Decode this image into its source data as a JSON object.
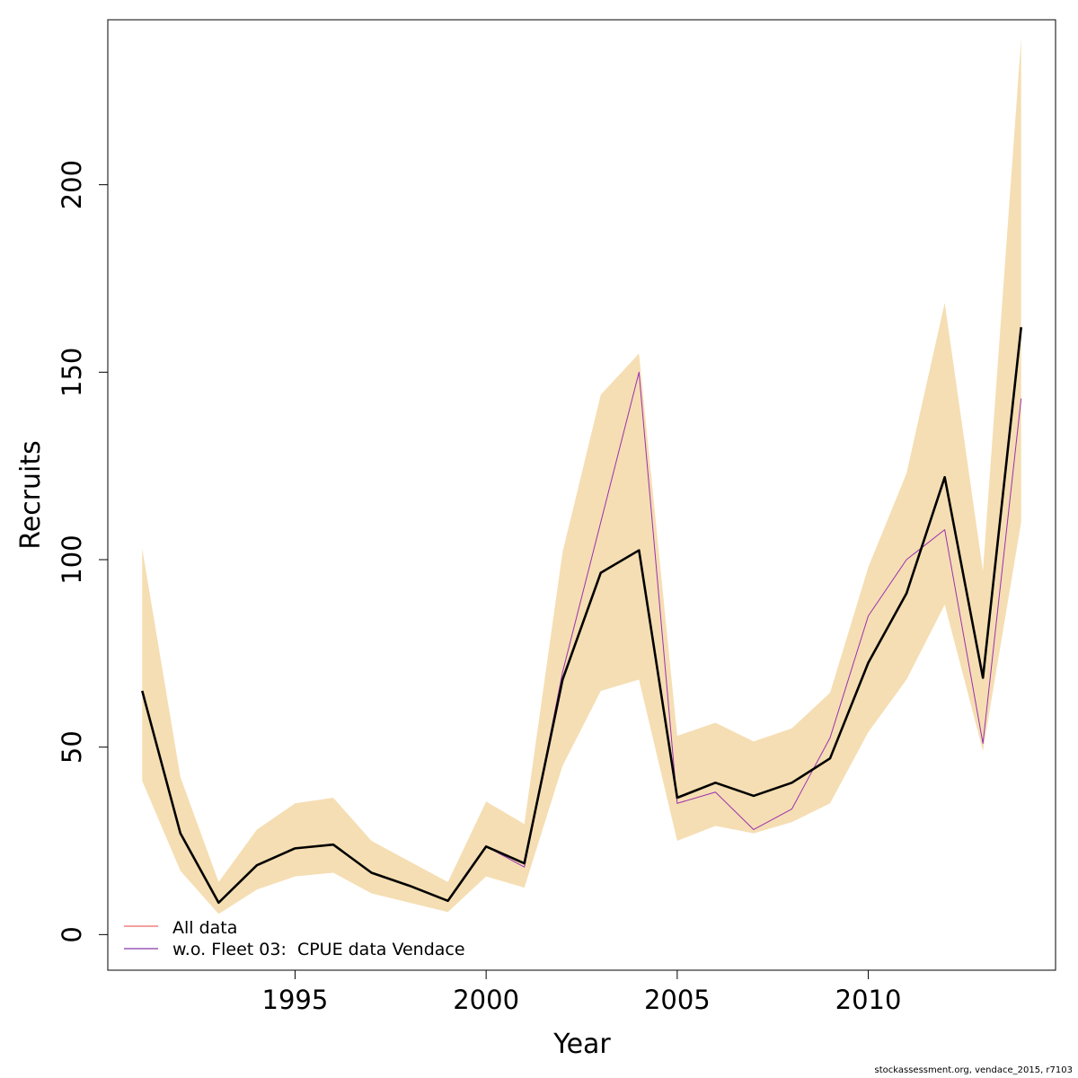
{
  "chart_data": {
    "type": "line",
    "xlabel": "Year",
    "ylabel": "Recruits",
    "xlim": [
      1990.1,
      2014.9
    ],
    "ylim": [
      -9.5,
      244
    ],
    "x_ticks": [
      1995,
      2000,
      2005,
      2010
    ],
    "y_ticks": [
      0,
      50,
      100,
      150,
      200
    ],
    "grid": false,
    "legend_position": "bottom-left",
    "x": [
      1991,
      1992,
      1993,
      1994,
      1995,
      1996,
      1997,
      1998,
      1999,
      2000,
      2001,
      2002,
      2003,
      2004,
      2005,
      2006,
      2007,
      2008,
      2009,
      2010,
      2011,
      2012,
      2013,
      2014
    ],
    "band": {
      "color": "#f5deb3",
      "lower": [
        41,
        17,
        5.5,
        12,
        15.5,
        16.5,
        11,
        8.5,
        6,
        15.5,
        12.5,
        45,
        65,
        68,
        25,
        29,
        27,
        30,
        35,
        54,
        68,
        88,
        49,
        110
      ],
      "upper": [
        103,
        42,
        14,
        28,
        35,
        36.5,
        25,
        19.5,
        14,
        35.5,
        29.5,
        102,
        144,
        155,
        53,
        56.5,
        51.5,
        55,
        64.5,
        98,
        123,
        168.5,
        97,
        239
      ]
    },
    "series": [
      {
        "name": "All data",
        "legend_color": "#f08080",
        "color": "#000000",
        "values": [
          65,
          27,
          8.5,
          18.5,
          23,
          24,
          16.5,
          13,
          9,
          23.5,
          19,
          68,
          96.5,
          102.5,
          36.5,
          40.5,
          37,
          40.5,
          47,
          72.5,
          91,
          122,
          68.5,
          162
        ]
      },
      {
        "name": "w.o. Fleet 03:  CPUE data Vendace",
        "legend_color": "#9b59b6",
        "color": "#9b30b0",
        "values": [
          65,
          27,
          8.5,
          18.5,
          23,
          24,
          16.5,
          13,
          9,
          23.5,
          18,
          70,
          110,
          150,
          35,
          38,
          28,
          33.5,
          52.5,
          85,
          100,
          108,
          51,
          143
        ]
      }
    ]
  },
  "footer": "stockassessment.org, vendace_2015, r7103"
}
